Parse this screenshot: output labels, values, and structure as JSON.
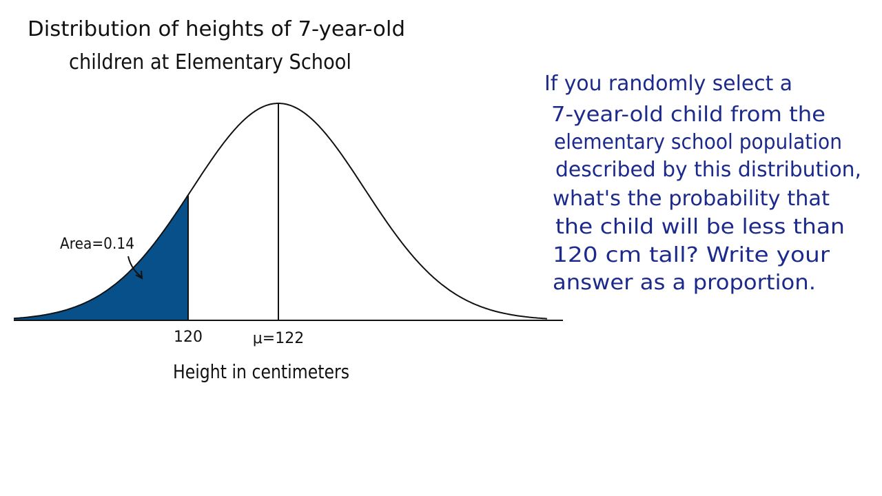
{
  "chart_data": {
    "type": "area",
    "title": [
      "Distribution of heights of 7-year-old",
      "children at Elementary School"
    ],
    "xlabel": "Height in centimeters",
    "ylabel": "",
    "distribution": "normal",
    "mean": 122,
    "mean_label": "μ=122",
    "marked_value": 120,
    "marked_label": "120",
    "shaded_region": "left of 120",
    "shaded_area": 0.14,
    "area_label": "Area=0.14",
    "shade_color": "#08508a",
    "curve_color": "#111111"
  },
  "question": {
    "color": "#1c2a8c",
    "lines": [
      "If you randomly select a",
      "7-year-old child from the",
      "elementary school population",
      "described by this distribution,",
      "what's the probability that",
      "the child will be less than",
      "120 cm tall? Write your",
      "answer as a proportion."
    ]
  }
}
